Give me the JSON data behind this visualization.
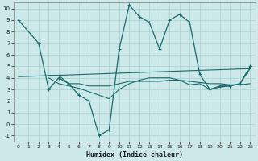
{
  "xlabel": "Humidex (Indice chaleur)",
  "bg_color": "#cce8e8",
  "grid_color": "#aed4d4",
  "line_color": "#1a6b6b",
  "xlim": [
    -0.5,
    23.5
  ],
  "ylim": [
    -1.5,
    10.5
  ],
  "xticks": [
    0,
    1,
    2,
    3,
    4,
    5,
    6,
    7,
    8,
    9,
    10,
    11,
    12,
    13,
    14,
    15,
    16,
    17,
    18,
    19,
    20,
    21,
    22,
    23
  ],
  "yticks": [
    -1,
    0,
    1,
    2,
    3,
    4,
    5,
    6,
    7,
    8,
    9,
    10
  ],
  "series": [
    {
      "x": [
        0,
        2,
        3,
        4,
        5,
        6,
        7,
        8,
        9,
        10,
        11,
        12,
        13,
        14,
        15,
        16,
        17,
        18,
        19,
        20,
        21,
        22,
        23
      ],
      "y": [
        9,
        7,
        3,
        4,
        3.5,
        2.5,
        2.0,
        -1,
        -0.5,
        6.5,
        10.3,
        9.3,
        8.8,
        6.5,
        9,
        9.5,
        8.8,
        4.3,
        3.0,
        3.3,
        3.3,
        3.5,
        5.0
      ],
      "marker": true
    },
    {
      "x": [
        3,
        4,
        5,
        6,
        7,
        8,
        9,
        10,
        11,
        12,
        13,
        14,
        15,
        16,
        17,
        18,
        19,
        20,
        21,
        22,
        23
      ],
      "y": [
        4.2,
        4.2,
        3.5,
        3.5,
        3.3,
        3.3,
        3.3,
        3.5,
        3.7,
        3.7,
        3.7,
        3.7,
        3.8,
        3.8,
        3.7,
        3.6,
        3.5,
        3.5,
        3.4,
        3.4,
        3.5
      ],
      "marker": false
    },
    {
      "x": [
        0,
        23
      ],
      "y": [
        4.1,
        4.8
      ],
      "marker": false
    },
    {
      "x": [
        3,
        4,
        5,
        6,
        7,
        8,
        9,
        10,
        11,
        12,
        13,
        14,
        15,
        16,
        17,
        18,
        19,
        20,
        21,
        22,
        23
      ],
      "y": [
        4.0,
        3.5,
        3.3,
        3.1,
        2.8,
        2.5,
        2.2,
        3.0,
        3.5,
        3.8,
        4.0,
        4.0,
        4.0,
        3.8,
        3.4,
        3.5,
        3.0,
        3.2,
        3.3,
        3.5,
        4.8
      ],
      "marker": false
    }
  ]
}
